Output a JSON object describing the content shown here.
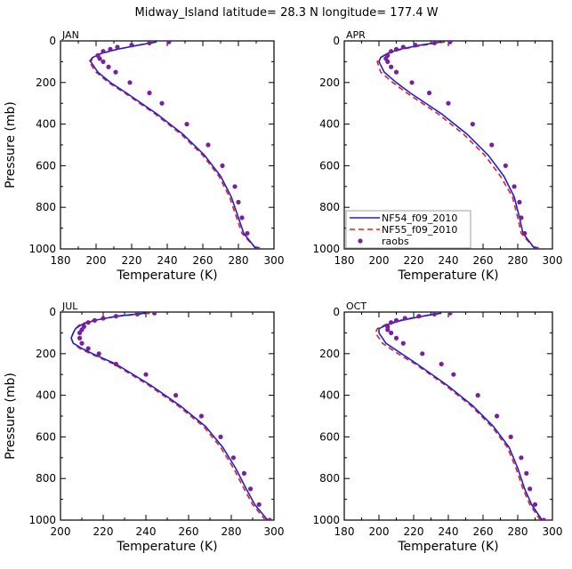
{
  "title": "Midway_Island  latitude= 28.3 N longitude= 177.4 W",
  "colors": {
    "nf54": "#1f1fd6",
    "nf55": "#e02020",
    "raobs": "#7a1fa0",
    "axis": "#000000"
  },
  "chart_data": [
    {
      "type": "line",
      "panel": "JAN",
      "xlabel": "Temperature (K)",
      "ylabel": "Pressure (mb)",
      "xlim": [
        180,
        300
      ],
      "ylim": [
        1000,
        0
      ],
      "xticks": [
        "180",
        "200",
        "220",
        "240",
        "260",
        "280",
        "300"
      ],
      "yticks": [
        "0",
        "200",
        "400",
        "600",
        "800",
        "1000"
      ],
      "series": [
        {
          "name": "NF54_f09_2010",
          "style": "solid",
          "pressure": [
            1000,
            925,
            850,
            750,
            650,
            550,
            450,
            350,
            250,
            200,
            150,
            100,
            80,
            60,
            40,
            20,
            5
          ],
          "temperature": [
            290,
            283,
            280,
            276,
            270,
            261,
            249,
            234,
            217,
            208,
            201,
            197,
            198,
            203,
            212,
            224,
            234
          ]
        },
        {
          "name": "NF55_f09_2010",
          "style": "dashed",
          "pressure": [
            1000,
            925,
            850,
            750,
            650,
            550,
            450,
            350,
            250,
            200,
            150,
            100,
            80,
            60,
            40,
            20,
            5
          ],
          "temperature": [
            290,
            282,
            279,
            275,
            269,
            260,
            248,
            233,
            216,
            207,
            200,
            196,
            198,
            203,
            212,
            224,
            234
          ]
        },
        {
          "name": "raobs",
          "style": "dots",
          "pressure": [
            1000,
            925,
            850,
            775,
            700,
            600,
            500,
            400,
            300,
            250,
            200,
            150,
            125,
            100,
            85,
            70,
            50,
            40,
            30,
            20,
            10,
            5
          ],
          "temperature": [
            291,
            285,
            282,
            280,
            278,
            271,
            263,
            251,
            237,
            230,
            219,
            211,
            207,
            204,
            202,
            201,
            204,
            208,
            212,
            220,
            230,
            241
          ]
        }
      ]
    },
    {
      "type": "line",
      "panel": "APR",
      "xlabel": "Temperature (K)",
      "ylabel": "",
      "xlim": [
        180,
        300
      ],
      "ylim": [
        1000,
        0
      ],
      "xticks": [
        "180",
        "200",
        "220",
        "240",
        "260",
        "280",
        "300"
      ],
      "yticks": [
        "0",
        "200",
        "400",
        "600",
        "800",
        "1000"
      ],
      "series": [
        {
          "name": "NF54_f09_2010",
          "style": "solid",
          "pressure": [
            1000,
            925,
            850,
            750,
            650,
            550,
            450,
            350,
            250,
            200,
            150,
            100,
            80,
            60,
            40,
            20,
            5
          ],
          "temperature": [
            290,
            283,
            281,
            278,
            272,
            263,
            251,
            236,
            218,
            210,
            203,
            200,
            201,
            205,
            212,
            224,
            236
          ]
        },
        {
          "name": "NF55_f09_2010",
          "style": "dashed",
          "pressure": [
            1000,
            925,
            850,
            750,
            650,
            550,
            450,
            350,
            250,
            200,
            150,
            100,
            80,
            60,
            40,
            20,
            5
          ],
          "temperature": [
            290,
            282,
            280,
            277,
            270,
            261,
            249,
            234,
            216,
            208,
            201,
            199,
            201,
            205,
            213,
            226,
            238
          ]
        },
        {
          "name": "raobs",
          "style": "dots",
          "pressure": [
            1000,
            925,
            850,
            775,
            700,
            600,
            500,
            400,
            300,
            250,
            200,
            150,
            125,
            100,
            85,
            70,
            50,
            40,
            30,
            20,
            10,
            5
          ],
          "temperature": [
            291,
            284,
            282,
            281,
            278,
            273,
            265,
            254,
            240,
            229,
            219,
            210,
            207,
            205,
            204,
            205,
            207,
            210,
            214,
            221,
            232,
            241
          ]
        }
      ]
    },
    {
      "type": "line",
      "panel": "JUL",
      "xlabel": "Temperature (K)",
      "ylabel": "Pressure (mb)",
      "xlim": [
        200,
        300
      ],
      "ylim": [
        1000,
        0
      ],
      "xticks": [
        "200",
        "220",
        "240",
        "260",
        "280",
        "300"
      ],
      "yticks": [
        "0",
        "200",
        "400",
        "600",
        "800",
        "1000"
      ],
      "series": [
        {
          "name": "NF54_f09_2010",
          "style": "solid",
          "pressure": [
            1000,
            925,
            850,
            750,
            650,
            550,
            450,
            350,
            250,
            200,
            175,
            150,
            125,
            100,
            80,
            60,
            40,
            20,
            5
          ],
          "temperature": [
            297,
            291,
            287,
            282,
            276,
            268,
            256,
            242,
            226,
            215,
            210,
            206,
            205,
            206,
            207,
            210,
            216,
            226,
            240
          ]
        },
        {
          "name": "NF55_f09_2010",
          "style": "dashed",
          "pressure": [
            1000,
            925,
            850,
            750,
            650,
            550,
            450,
            350,
            250,
            200,
            175,
            150,
            125,
            100,
            80,
            60,
            40,
            20,
            5
          ],
          "temperature": [
            296,
            290,
            286,
            281,
            275,
            267,
            255,
            241,
            225,
            214,
            209,
            206,
            205,
            206,
            207,
            209,
            215,
            227,
            242
          ]
        },
        {
          "name": "raobs",
          "style": "dots",
          "pressure": [
            1000,
            925,
            850,
            775,
            700,
            600,
            500,
            400,
            300,
            250,
            200,
            175,
            150,
            125,
            100,
            85,
            70,
            50,
            40,
            30,
            20,
            10,
            5
          ],
          "temperature": [
            298,
            293,
            289,
            286,
            281,
            275,
            266,
            254,
            240,
            226,
            218,
            213,
            210,
            209,
            209,
            210,
            211,
            213,
            216,
            220,
            226,
            236,
            244
          ]
        }
      ]
    },
    {
      "type": "line",
      "panel": "OCT",
      "xlabel": "Temperature (K)",
      "ylabel": "",
      "xlim": [
        180,
        300
      ],
      "ylim": [
        1000,
        0
      ],
      "xticks": [
        "180",
        "200",
        "220",
        "240",
        "260",
        "280",
        "300"
      ],
      "yticks": [
        "0",
        "200",
        "400",
        "600",
        "800",
        "1000"
      ],
      "series": [
        {
          "name": "NF54_f09_2010",
          "style": "solid",
          "pressure": [
            1000,
            925,
            850,
            750,
            650,
            550,
            450,
            350,
            250,
            200,
            150,
            100,
            80,
            60,
            40,
            20,
            5
          ],
          "temperature": [
            294,
            288,
            284,
            280,
            275,
            266,
            254,
            239,
            222,
            213,
            204,
            200,
            200,
            205,
            213,
            225,
            236
          ]
        },
        {
          "name": "NF55_f09_2010",
          "style": "dashed",
          "pressure": [
            1000,
            925,
            850,
            750,
            650,
            550,
            450,
            350,
            250,
            200,
            150,
            100,
            80,
            60,
            40,
            20,
            5
          ],
          "temperature": [
            293,
            287,
            283,
            279,
            274,
            265,
            253,
            238,
            221,
            211,
            202,
            198,
            199,
            204,
            212,
            224,
            236
          ]
        },
        {
          "name": "raobs",
          "style": "dots",
          "pressure": [
            1000,
            925,
            850,
            775,
            700,
            600,
            500,
            400,
            300,
            250,
            200,
            150,
            125,
            100,
            85,
            70,
            50,
            40,
            30,
            20,
            10,
            5
          ],
          "temperature": [
            295,
            290,
            287,
            285,
            282,
            276,
            268,
            257,
            243,
            236,
            225,
            214,
            210,
            207,
            205,
            205,
            207,
            210,
            215,
            223,
            232,
            241
          ]
        }
      ]
    }
  ],
  "legend": {
    "panel": "APR",
    "entries": [
      "NF54_f09_2010",
      "NF55_f09_2010",
      "raobs"
    ]
  }
}
